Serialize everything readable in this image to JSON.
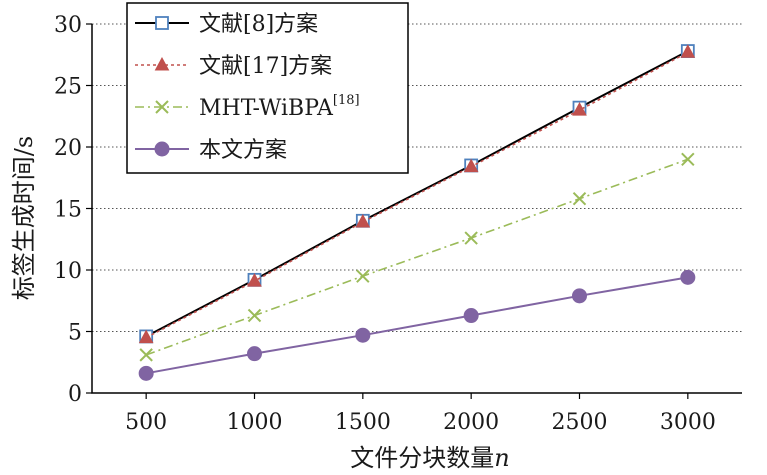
{
  "chart_data": {
    "type": "line",
    "title": "",
    "xlabel": "文件分块数量",
    "xlabel_var": "n",
    "ylabel": "标签生成时间/s",
    "categories": [
      "500",
      "1000",
      "1500",
      "2000",
      "2500",
      "3000"
    ],
    "x": [
      500,
      1000,
      1500,
      2000,
      2500,
      3000
    ],
    "ylim": [
      0,
      30
    ],
    "yticks": [
      "0",
      "5",
      "10",
      "15",
      "20",
      "25",
      "30"
    ],
    "grid": "horizontal-dotted",
    "legend_position": "top-left",
    "series": [
      {
        "name": "文献[8]方案",
        "sup": "",
        "color": "#000000",
        "marker": "square",
        "marker_color": "#4f81bd",
        "dash": "solid",
        "values": [
          4.6,
          9.2,
          14.0,
          18.5,
          23.2,
          27.8
        ]
      },
      {
        "name": "文献[17]方案",
        "sup": "",
        "color": "#c0504d",
        "marker": "triangle",
        "marker_color": "#c0504d",
        "dash": "dotted",
        "values": [
          4.5,
          9.1,
          13.9,
          18.4,
          23.0,
          27.7
        ]
      },
      {
        "name": "MHT-WiBPA",
        "sup": "[18]",
        "color": "#9bbb59",
        "marker": "x",
        "marker_color": "#9bbb59",
        "dash": "dashdot",
        "values": [
          3.1,
          6.3,
          9.5,
          12.6,
          15.8,
          19.0
        ]
      },
      {
        "name": "本文方案",
        "sup": "",
        "color": "#8064a2",
        "marker": "circle",
        "marker_color": "#8064a2",
        "dash": "solid",
        "values": [
          1.6,
          3.2,
          4.7,
          6.3,
          7.9,
          9.4
        ]
      }
    ]
  }
}
